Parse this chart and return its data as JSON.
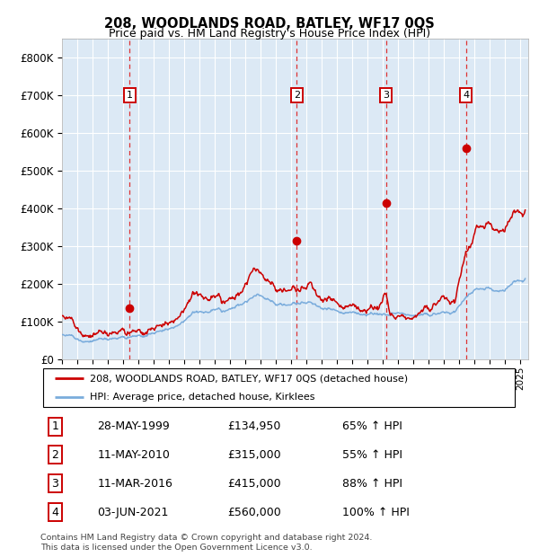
{
  "title": "208, WOODLANDS ROAD, BATLEY, WF17 0QS",
  "subtitle": "Price paid vs. HM Land Registry's House Price Index (HPI)",
  "legend_property": "208, WOODLANDS ROAD, BATLEY, WF17 0QS (detached house)",
  "legend_hpi": "HPI: Average price, detached house, Kirklees",
  "footer1": "Contains HM Land Registry data © Crown copyright and database right 2024.",
  "footer2": "This data is licensed under the Open Government Licence v3.0.",
  "sales": [
    {
      "num": 1,
      "date": "28-MAY-1999",
      "price": 134950,
      "price_str": "£134,950",
      "pct": "65% ↑ HPI"
    },
    {
      "num": 2,
      "date": "11-MAY-2010",
      "price": 315000,
      "price_str": "£315,000",
      "pct": "55% ↑ HPI"
    },
    {
      "num": 3,
      "date": "11-MAR-2016",
      "price": 415000,
      "price_str": "£415,000",
      "pct": "88% ↑ HPI"
    },
    {
      "num": 4,
      "date": "03-JUN-2021",
      "price": 560000,
      "price_str": "£560,000",
      "pct": "100% ↑ HPI"
    }
  ],
  "sale_years": [
    1999.42,
    2010.36,
    2016.19,
    2021.42
  ],
  "sale_prices": [
    134950,
    315000,
    415000,
    560000
  ],
  "xlim": [
    1995.0,
    2025.5
  ],
  "ylim": [
    0,
    850000
  ],
  "yticks": [
    0,
    100000,
    200000,
    300000,
    400000,
    500000,
    600000,
    700000,
    800000
  ],
  "bg_color": "#dce9f5",
  "grid_color": "#ffffff",
  "red_color": "#cc0000",
  "blue_color": "#7aacdc",
  "dashed_color": "#dd3333",
  "box_color": "#cc0000"
}
